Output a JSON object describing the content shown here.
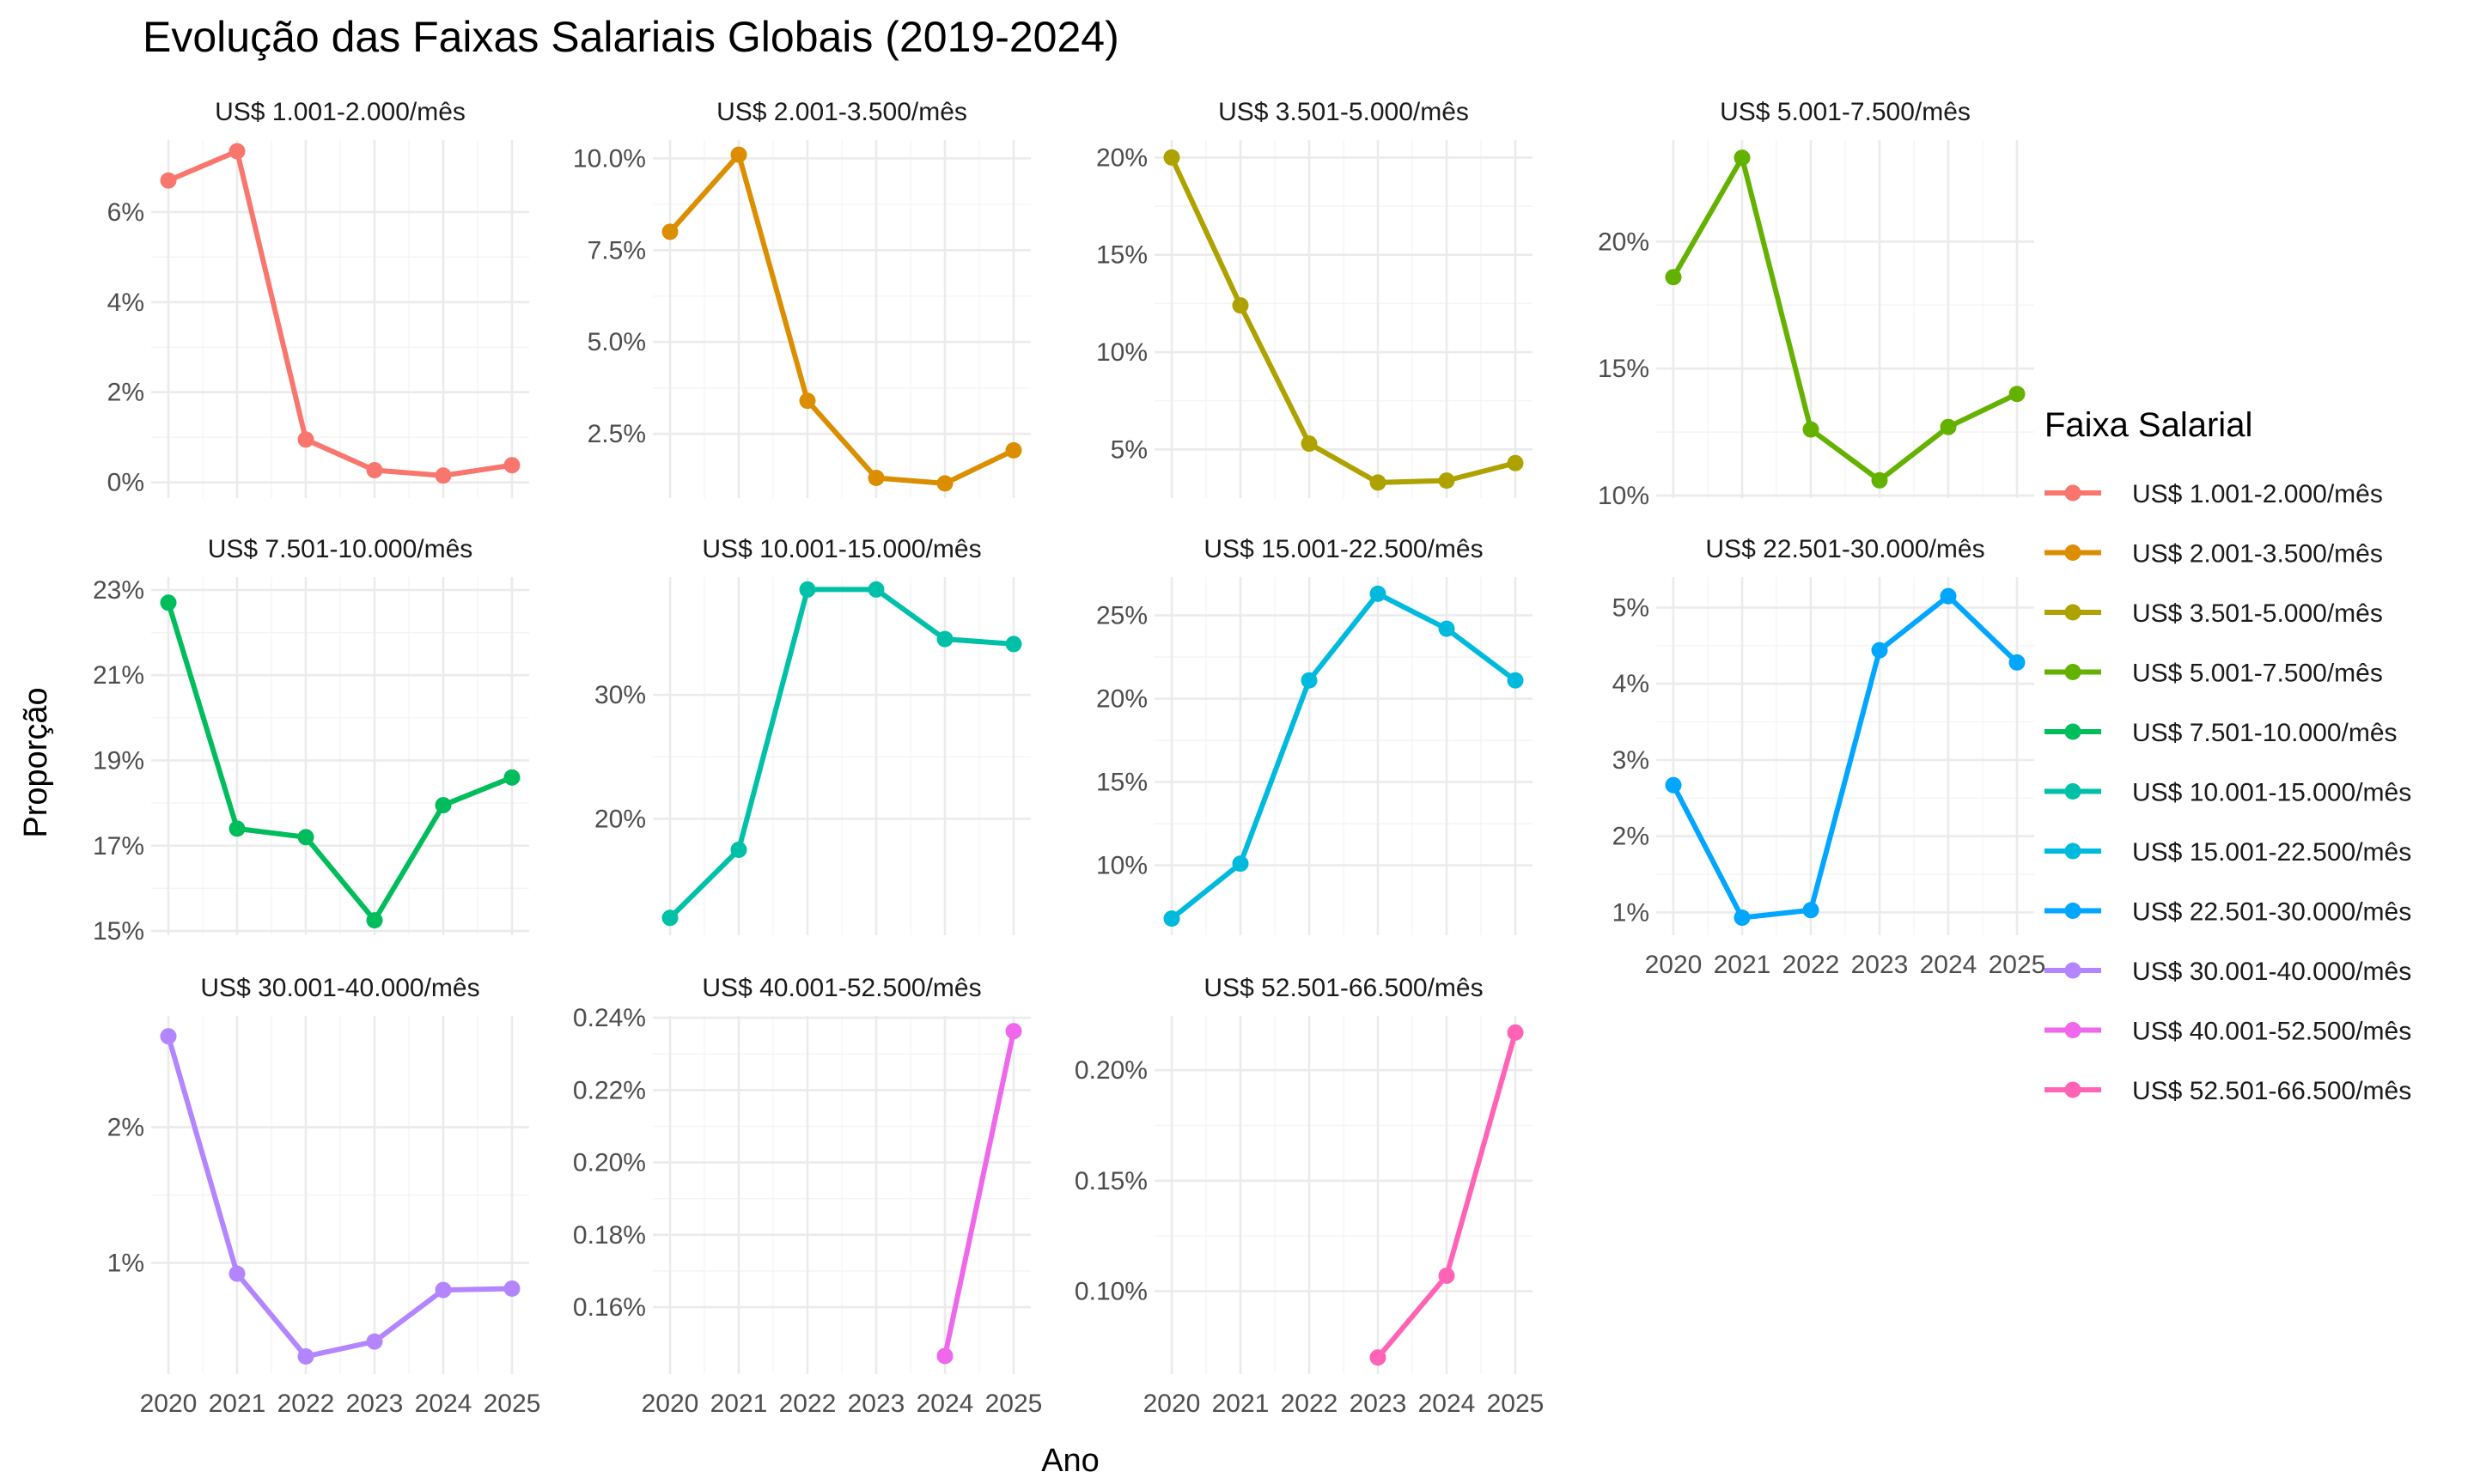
{
  "chart_data": {
    "type": "line",
    "title": "Evolução das Faixas Salariais Globais (2019-2024)",
    "xlabel": "Ano",
    "ylabel": "Proporção",
    "legend_title": "Faixa Salarial",
    "legend_position": "right",
    "grid": true,
    "x": [
      2020,
      2021,
      2022,
      2023,
      2024,
      2025
    ],
    "x_tick_labels": [
      "2020",
      "2021",
      "2022",
      "2023",
      "2024",
      "2025"
    ],
    "series": [
      {
        "name": "US$ 1.001-2.000/mês",
        "color": "#F8766D",
        "x": [
          2020,
          2021,
          2022,
          2023,
          2024,
          2025
        ],
        "values": [
          6.7,
          7.35,
          0.95,
          0.27,
          0.15,
          0.38
        ],
        "ylim": [
          -0.35,
          7.6
        ],
        "yticks": [
          0,
          2,
          4,
          6
        ],
        "ytick_labels": [
          "0%",
          "2%",
          "4%",
          "6%"
        ]
      },
      {
        "name": "US$ 2.001-3.500/mês",
        "color": "#DB8E00",
        "x": [
          2020,
          2021,
          2022,
          2023,
          2024,
          2025
        ],
        "values": [
          8.0,
          10.1,
          3.4,
          1.3,
          1.15,
          2.05
        ],
        "ylim": [
          0.75,
          10.5
        ],
        "yticks": [
          2.5,
          5.0,
          7.5,
          10.0
        ],
        "ytick_labels": [
          "2.5%",
          "5.0%",
          "7.5%",
          "10.0%"
        ]
      },
      {
        "name": "US$ 3.501-5.000/mês",
        "color": "#AEA200",
        "x": [
          2020,
          2021,
          2022,
          2023,
          2024,
          2025
        ],
        "values": [
          20.0,
          12.4,
          5.3,
          3.3,
          3.4,
          4.3
        ],
        "ylim": [
          2.5,
          20.9
        ],
        "yticks": [
          5,
          10,
          15,
          20
        ],
        "ytick_labels": [
          "5%",
          "10%",
          "15%",
          "20%"
        ]
      },
      {
        "name": "US$ 5.001-7.500/mês",
        "color": "#64B200",
        "x": [
          2020,
          2021,
          2022,
          2023,
          2024,
          2025
        ],
        "values": [
          18.6,
          23.3,
          12.6,
          10.6,
          12.7,
          14.0
        ],
        "ylim": [
          9.9,
          24.0
        ],
        "yticks": [
          10,
          15,
          20
        ],
        "ytick_labels": [
          "10%",
          "15%",
          "20%"
        ]
      },
      {
        "name": "US$ 7.501-10.000/mês",
        "color": "#00BD5C",
        "x": [
          2020,
          2021,
          2022,
          2023,
          2024,
          2025
        ],
        "values": [
          22.7,
          17.4,
          17.2,
          15.25,
          17.95,
          18.6
        ],
        "ylim": [
          14.9,
          23.3
        ],
        "yticks": [
          15,
          17,
          19,
          21,
          23
        ],
        "ytick_labels": [
          "15%",
          "17%",
          "19%",
          "21%",
          "23%"
        ]
      },
      {
        "name": "US$ 10.001-15.000/mês",
        "color": "#00C1A7",
        "x": [
          2020,
          2021,
          2022,
          2023,
          2024,
          2025
        ],
        "values": [
          12.0,
          17.5,
          38.5,
          38.5,
          34.5,
          34.1
        ],
        "ylim": [
          10.6,
          39.5
        ],
        "yticks": [
          20,
          30
        ],
        "ytick_labels": [
          "20%",
          "30%"
        ]
      },
      {
        "name": "US$ 15.001-22.500/mês",
        "color": "#00BADE",
        "x": [
          2020,
          2021,
          2022,
          2023,
          2024,
          2025
        ],
        "values": [
          6.8,
          10.1,
          21.1,
          26.3,
          24.2,
          21.1
        ],
        "ylim": [
          5.8,
          27.3
        ],
        "yticks": [
          10,
          15,
          20,
          25
        ],
        "ytick_labels": [
          "10%",
          "15%",
          "20%",
          "25%"
        ]
      },
      {
        "name": "US$ 22.501-30.000/mês",
        "color": "#00A6FF",
        "x": [
          2020,
          2021,
          2022,
          2023,
          2024,
          2025
        ],
        "values": [
          2.67,
          0.93,
          1.03,
          4.44,
          5.15,
          4.28
        ],
        "ylim": [
          0.7,
          5.4
        ],
        "yticks": [
          1,
          2,
          3,
          4,
          5
        ],
        "ytick_labels": [
          "1%",
          "2%",
          "3%",
          "4%",
          "5%"
        ]
      },
      {
        "name": "US$ 30.001-40.000/mês",
        "color": "#B385FF",
        "x": [
          2020,
          2021,
          2022,
          2023,
          2024,
          2025
        ],
        "values": [
          2.67,
          0.92,
          0.31,
          0.42,
          0.8,
          0.81
        ],
        "ylim": [
          0.18,
          2.82
        ],
        "yticks": [
          1,
          2
        ],
        "ytick_labels": [
          "1%",
          "2%"
        ]
      },
      {
        "name": "US$ 40.001-52.500/mês",
        "color": "#EF67EB",
        "x": [
          2024,
          2025
        ],
        "values": [
          0.1465,
          0.2363
        ],
        "ylim": [
          0.1415,
          0.2405
        ],
        "yticks": [
          0.16,
          0.18,
          0.2,
          0.22,
          0.24
        ],
        "ytick_labels": [
          "0.16%",
          "0.18%",
          "0.20%",
          "0.22%",
          "0.24%"
        ]
      },
      {
        "name": "US$ 52.501-66.500/mês",
        "color": "#FF63B6",
        "x": [
          2023,
          2024,
          2025
        ],
        "values": [
          0.07,
          0.107,
          0.217
        ],
        "ylim": [
          0.0625,
          0.2245
        ],
        "yticks": [
          0.1,
          0.15,
          0.2
        ],
        "ytick_labels": [
          "0.10%",
          "0.15%",
          "0.20%"
        ]
      }
    ]
  }
}
